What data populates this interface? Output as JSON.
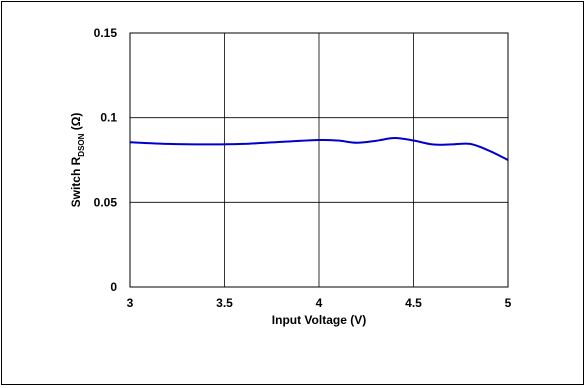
{
  "chart_data": {
    "type": "line",
    "xlabel": "Input Voltage (V)",
    "ylabel": {
      "prefix": "Switch R",
      "subscript": "DSON",
      "suffix": " (Ω)"
    },
    "xlim": [
      3,
      5
    ],
    "ylim": [
      0,
      0.15
    ],
    "x_ticks": [
      3,
      3.5,
      4,
      4.5,
      5
    ],
    "x_tick_labels": [
      "3",
      "3.5",
      "4",
      "4.5",
      "5"
    ],
    "y_ticks": [
      0,
      0.05,
      0.1,
      0.15
    ],
    "y_tick_labels": [
      "0",
      "0.05",
      "0.1",
      "0.15"
    ],
    "grid": true,
    "series": [
      {
        "color": "#0000cc",
        "x": [
          3.0,
          3.2,
          3.4,
          3.6,
          3.8,
          4.0,
          4.1,
          4.2,
          4.3,
          4.4,
          4.5,
          4.6,
          4.7,
          4.8,
          4.9,
          5.0
        ],
        "y": [
          0.0855,
          0.0845,
          0.0842,
          0.0845,
          0.0857,
          0.0868,
          0.0865,
          0.0852,
          0.0863,
          0.088,
          0.0865,
          0.0842,
          0.0842,
          0.0845,
          0.0805,
          0.075
        ]
      }
    ]
  }
}
